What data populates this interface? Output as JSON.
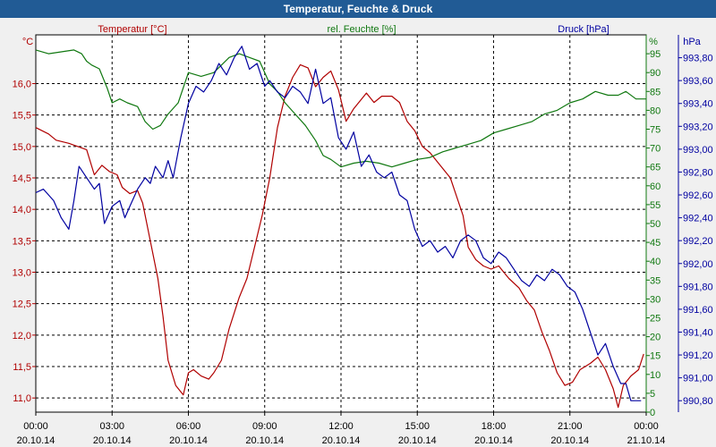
{
  "window": {
    "title": "Temperatur, Feuchte & Druck"
  },
  "chart_data": {
    "type": "line",
    "title": "Temperatur, Feuchte & Druck",
    "colors": {
      "temperature": "#b00000",
      "humidity": "#107810",
      "pressure": "#0000a0",
      "grid": "#000000",
      "title_bg": "#215b95"
    },
    "x_ticks": [
      {
        "t": 0,
        "time": "00:00",
        "date": "20.10.14"
      },
      {
        "t": 3,
        "time": "03:00",
        "date": "20.10.14"
      },
      {
        "t": 6,
        "time": "06:00",
        "date": "20.10.14"
      },
      {
        "t": 9,
        "time": "09:00",
        "date": "20.10.14"
      },
      {
        "t": 12,
        "time": "12:00",
        "date": "20.10.14"
      },
      {
        "t": 15,
        "time": "15:00",
        "date": "20.10.14"
      },
      {
        "t": 18,
        "time": "18:00",
        "date": "20.10.14"
      },
      {
        "t": 21,
        "time": "21:00",
        "date": "20.10.14"
      },
      {
        "t": 24,
        "time": "00:00",
        "date": "21.10.14"
      }
    ],
    "xlim": [
      0,
      24
    ],
    "axes": {
      "temperature": {
        "unit_label": "°C",
        "legend": "Temperatur [°C]",
        "ylim": [
          10.775,
          16.775
        ],
        "ticks": [
          {
            "v": 11.0,
            "label": "11,0"
          },
          {
            "v": 11.5,
            "label": "11,5"
          },
          {
            "v": 12.0,
            "label": "12,0"
          },
          {
            "v": 12.5,
            "label": "12,5"
          },
          {
            "v": 13.0,
            "label": "13,0"
          },
          {
            "v": 13.5,
            "label": "13,5"
          },
          {
            "v": 14.0,
            "label": "14,0"
          },
          {
            "v": 14.5,
            "label": "14,5"
          },
          {
            "v": 15.0,
            "label": "15,0"
          },
          {
            "v": 15.5,
            "label": "15,5"
          },
          {
            "v": 16.0,
            "label": "16,0"
          }
        ]
      },
      "humidity": {
        "unit_label": "%",
        "legend": "rel. Feuchte [%]",
        "ylim": [
          0,
          100
        ],
        "ticks": [
          {
            "v": 0,
            "label": "0"
          },
          {
            "v": 5,
            "label": "5"
          },
          {
            "v": 10,
            "label": "10"
          },
          {
            "v": 15,
            "label": "15"
          },
          {
            "v": 20,
            "label": "20"
          },
          {
            "v": 25,
            "label": "25"
          },
          {
            "v": 30,
            "label": "30"
          },
          {
            "v": 35,
            "label": "35"
          },
          {
            "v": 40,
            "label": "40"
          },
          {
            "v": 45,
            "label": "45"
          },
          {
            "v": 50,
            "label": "50"
          },
          {
            "v": 55,
            "label": "55"
          },
          {
            "v": 60,
            "label": "60"
          },
          {
            "v": 65,
            "label": "65"
          },
          {
            "v": 70,
            "label": "70"
          },
          {
            "v": 75,
            "label": "75"
          },
          {
            "v": 80,
            "label": "80"
          },
          {
            "v": 85,
            "label": "85"
          },
          {
            "v": 90,
            "label": "90"
          },
          {
            "v": 95,
            "label": "95"
          }
        ]
      },
      "pressure": {
        "unit_label": "hPa",
        "legend": "Druck [hPa]",
        "ylim": [
          990.7,
          994.0
        ],
        "ticks": [
          {
            "v": 990.8,
            "label": "990,80"
          },
          {
            "v": 991.0,
            "label": "991,00"
          },
          {
            "v": 991.2,
            "label": "991,20"
          },
          {
            "v": 991.4,
            "label": "991,40"
          },
          {
            "v": 991.6,
            "label": "991,60"
          },
          {
            "v": 991.8,
            "label": "991,80"
          },
          {
            "v": 992.0,
            "label": "992,00"
          },
          {
            "v": 992.2,
            "label": "992,20"
          },
          {
            "v": 992.4,
            "label": "992,40"
          },
          {
            "v": 992.6,
            "label": "992,60"
          },
          {
            "v": 992.8,
            "label": "992,80"
          },
          {
            "v": 993.0,
            "label": "993,00"
          },
          {
            "v": 993.2,
            "label": "993,20"
          },
          {
            "v": 993.4,
            "label": "993,40"
          },
          {
            "v": 993.6,
            "label": "993,60"
          },
          {
            "v": 993.8,
            "label": "993,80"
          }
        ]
      }
    },
    "series": [
      {
        "name": "Temperatur [°C]",
        "axis": "temperature",
        "x": [
          0,
          0.5,
          0.8,
          1.3,
          2.0,
          2.3,
          2.6,
          2.9,
          3.2,
          3.4,
          3.7,
          4.0,
          4.2,
          4.5,
          4.8,
          5.0,
          5.2,
          5.5,
          5.8,
          6.0,
          6.2,
          6.5,
          6.8,
          7.0,
          7.3,
          7.6,
          8.0,
          8.3,
          8.6,
          8.9,
          9.2,
          9.5,
          9.8,
          10.1,
          10.4,
          10.7,
          11.0,
          11.3,
          11.6,
          11.9,
          12.2,
          12.5,
          13.0,
          13.3,
          13.6,
          14.0,
          14.3,
          14.6,
          14.9,
          15.2,
          15.5,
          15.9,
          16.3,
          16.8,
          17.0,
          17.3,
          17.6,
          17.9,
          18.2,
          18.6,
          19.0,
          19.3,
          19.6,
          19.9,
          20.2,
          20.5,
          20.8,
          21.1,
          21.4,
          21.8,
          22.1,
          22.4,
          22.7,
          22.9,
          23.1,
          23.4,
          23.7,
          23.9
        ],
        "values": [
          15.3,
          15.2,
          15.1,
          15.05,
          14.95,
          14.55,
          14.7,
          14.6,
          14.55,
          14.35,
          14.25,
          14.3,
          14.1,
          13.5,
          12.9,
          12.3,
          11.6,
          11.2,
          11.05,
          11.4,
          11.45,
          11.35,
          11.3,
          11.4,
          11.6,
          12.1,
          12.6,
          12.9,
          13.4,
          13.9,
          14.5,
          15.3,
          15.8,
          16.1,
          16.3,
          16.25,
          15.95,
          16.1,
          16.2,
          15.9,
          15.4,
          15.6,
          15.85,
          15.7,
          15.8,
          15.8,
          15.7,
          15.4,
          15.25,
          15.0,
          14.9,
          14.7,
          14.5,
          13.9,
          13.4,
          13.2,
          13.1,
          13.05,
          13.1,
          12.9,
          12.75,
          12.55,
          12.4,
          12.05,
          11.75,
          11.4,
          11.2,
          11.25,
          11.45,
          11.55,
          11.65,
          11.45,
          11.15,
          10.85,
          11.2,
          11.35,
          11.45,
          11.7
        ]
      },
      {
        "name": "rel. Feuchte [%]",
        "axis": "humidity",
        "x": [
          0,
          0.5,
          1.0,
          1.5,
          1.8,
          2.0,
          2.2,
          2.5,
          2.8,
          3.0,
          3.3,
          3.6,
          4.0,
          4.3,
          4.6,
          4.9,
          5.2,
          5.6,
          6.0,
          6.5,
          7.0,
          7.3,
          7.6,
          8.0,
          8.4,
          8.8,
          9.2,
          9.5,
          9.8,
          10.2,
          10.6,
          11.0,
          11.3,
          11.6,
          12.0,
          12.5,
          13.0,
          13.5,
          14.0,
          14.5,
          15.0,
          15.5,
          16.0,
          16.5,
          17.0,
          17.5,
          18.0,
          18.5,
          19.0,
          19.5,
          20.0,
          20.5,
          21.0,
          21.5,
          22.0,
          22.5,
          22.9,
          23.2,
          23.6,
          24.0
        ],
        "values": [
          96,
          95,
          95.5,
          96,
          95,
          93,
          92,
          91,
          86,
          82,
          83,
          82,
          81,
          77,
          75,
          76,
          79,
          82,
          90,
          89,
          90,
          92,
          94,
          95,
          94,
          93,
          87,
          85,
          82,
          79,
          76,
          72,
          68,
          67,
          65,
          66,
          66.5,
          66,
          65,
          66,
          67,
          67.5,
          69,
          70,
          71,
          72,
          74,
          75,
          76,
          77,
          79,
          80,
          82,
          83,
          85,
          84,
          84,
          85,
          83,
          83
        ]
      },
      {
        "name": "Druck [hPa]",
        "axis": "pressure",
        "x": [
          0,
          0.3,
          0.7,
          1.0,
          1.3,
          1.5,
          1.7,
          2.0,
          2.3,
          2.5,
          2.7,
          3.0,
          3.3,
          3.5,
          3.7,
          4.0,
          4.3,
          4.5,
          4.7,
          5.0,
          5.2,
          5.4,
          5.7,
          6.0,
          6.3,
          6.6,
          6.9,
          7.2,
          7.5,
          7.8,
          8.1,
          8.4,
          8.7,
          9.0,
          9.2,
          9.5,
          9.8,
          10.1,
          10.4,
          10.7,
          11.0,
          11.3,
          11.6,
          11.9,
          12.2,
          12.5,
          12.8,
          13.1,
          13.4,
          13.7,
          14.0,
          14.3,
          14.6,
          14.9,
          15.2,
          15.5,
          15.8,
          16.1,
          16.4,
          16.7,
          17.0,
          17.3,
          17.6,
          17.9,
          18.2,
          18.5,
          18.8,
          19.1,
          19.4,
          19.7,
          20.0,
          20.3,
          20.6,
          20.9,
          21.2,
          21.5,
          21.8,
          22.1,
          22.4,
          22.7,
          23.0,
          23.2,
          23.4,
          23.6,
          23.8
        ],
        "values": [
          992.62,
          992.65,
          992.55,
          992.4,
          992.3,
          992.55,
          992.85,
          992.75,
          992.65,
          992.7,
          992.35,
          992.5,
          992.55,
          992.4,
          992.5,
          992.65,
          992.75,
          992.7,
          992.85,
          992.75,
          992.9,
          992.75,
          993.1,
          993.4,
          993.55,
          993.5,
          993.6,
          993.75,
          993.65,
          993.8,
          993.9,
          993.7,
          993.75,
          993.55,
          993.6,
          993.5,
          993.45,
          993.55,
          993.5,
          993.4,
          993.7,
          993.4,
          993.45,
          993.1,
          993.0,
          993.15,
          992.85,
          992.95,
          992.8,
          992.75,
          992.8,
          992.6,
          992.55,
          992.3,
          992.15,
          992.2,
          992.1,
          992.15,
          992.05,
          992.2,
          992.25,
          992.2,
          992.05,
          992.0,
          992.1,
          992.05,
          991.95,
          991.85,
          991.8,
          991.9,
          991.85,
          991.95,
          991.9,
          991.8,
          991.75,
          991.6,
          991.4,
          991.2,
          991.3,
          991.1,
          990.95,
          990.95,
          990.8,
          990.8,
          990.8
        ]
      }
    ]
  }
}
